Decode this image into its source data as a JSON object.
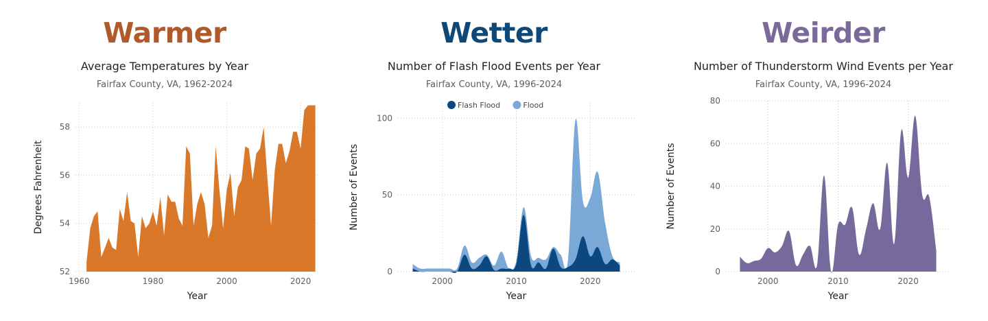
{
  "colors": {
    "warmer": "#b05a2c",
    "wetter": "#0e4879",
    "weirder": "#7a6a9a",
    "temperature_fill": "#d97828",
    "flash_flood": "#0c4880",
    "flood": "#7aa9d8",
    "thunderstorm": "#766a9c"
  },
  "panels": [
    {
      "heading": "Warmer",
      "title": "Average Temperatures by Year",
      "subtitle": "Fairfax County, VA, 1962-2024"
    },
    {
      "heading": "Wetter",
      "title": "Number of Flash Flood Events per Year",
      "subtitle": "Fairfax County, VA, 1996-2024"
    },
    {
      "heading": "Weirder",
      "title": "Number of Thunderstorm Wind Events per Year",
      "subtitle": "Fairfax County, VA, 1996-2024"
    }
  ],
  "chart_data": [
    {
      "type": "area",
      "title": "Average Temperatures by Year",
      "subtitle": "Fairfax County, VA, 1962-2024",
      "xlabel": "Year",
      "ylabel": "Degrees Fahrenheit",
      "xlim": [
        1959,
        2025
      ],
      "ylim": [
        52,
        59
      ],
      "xticks": [
        1960,
        1980,
        2000,
        2020
      ],
      "yticks": [
        52,
        54,
        56,
        58
      ],
      "grid": true,
      "x": [
        1962,
        1963,
        1964,
        1965,
        1966,
        1967,
        1968,
        1969,
        1970,
        1971,
        1972,
        1973,
        1974,
        1975,
        1976,
        1977,
        1978,
        1979,
        1980,
        1981,
        1982,
        1983,
        1984,
        1985,
        1986,
        1987,
        1988,
        1989,
        1990,
        1991,
        1992,
        1993,
        1994,
        1995,
        1996,
        1997,
        1998,
        1999,
        2000,
        2001,
        2002,
        2003,
        2004,
        2005,
        2006,
        2007,
        2008,
        2009,
        2010,
        2011,
        2012,
        2013,
        2014,
        2015,
        2016,
        2017,
        2018,
        2019,
        2020,
        2021,
        2022,
        2023,
        2024
      ],
      "series": [
        {
          "values": [
            52.4,
            53.8,
            54.3,
            54.5,
            52.6,
            53.0,
            53.4,
            53.0,
            52.9,
            54.6,
            54.1,
            55.3,
            54.1,
            54.0,
            52.6,
            54.3,
            53.8,
            54.0,
            54.5,
            53.9,
            55.1,
            53.5,
            55.2,
            54.9,
            54.9,
            54.2,
            53.9,
            57.2,
            56.9,
            53.9,
            54.8,
            55.3,
            54.8,
            53.4,
            53.9,
            57.2,
            55.4,
            53.8,
            55.4,
            56.1,
            54.3,
            55.5,
            55.8,
            57.2,
            57.1,
            55.8,
            56.9,
            57.1,
            58.0,
            55.9,
            53.9,
            56.2,
            57.3,
            57.3,
            56.5,
            57.0,
            57.8,
            57.8,
            57.1,
            58.7,
            58.9,
            58.9,
            58.9
          ]
        }
      ]
    },
    {
      "type": "area",
      "title": "Number of Flash Flood Events per Year",
      "subtitle": "Fairfax County, VA, 1996-2024",
      "xlabel": "Year",
      "ylabel": "Number of Events",
      "xlim": [
        1994,
        2026
      ],
      "ylim": [
        0,
        110
      ],
      "xticks": [
        2000,
        2010,
        2020
      ],
      "yticks": [
        0,
        50,
        100
      ],
      "grid": true,
      "legend": "top",
      "x": [
        1996,
        1997,
        1998,
        1999,
        2000,
        2001,
        2002,
        2003,
        2004,
        2005,
        2006,
        2007,
        2008,
        2009,
        2010,
        2011,
        2012,
        2013,
        2014,
        2015,
        2016,
        2017,
        2018,
        2019,
        2020,
        2021,
        2022,
        2023,
        2024
      ],
      "series": [
        {
          "name": "Flash Flood",
          "values": [
            2,
            0,
            0,
            0,
            0,
            0,
            0,
            11,
            2,
            4,
            10,
            1,
            2,
            2,
            5,
            37,
            4,
            6,
            2,
            15,
            3,
            3,
            8,
            23,
            10,
            16,
            5,
            8,
            4
          ]
        },
        {
          "name": "Flood",
          "values": [
            5,
            2,
            2,
            2,
            2,
            2,
            2,
            17,
            6,
            9,
            11,
            4,
            13,
            2,
            7,
            42,
            10,
            9,
            8,
            16,
            11,
            8,
            99,
            46,
            48,
            65,
            32,
            10,
            6
          ]
        }
      ]
    },
    {
      "type": "area",
      "title": "Number of Thunderstorm Wind Events per Year",
      "subtitle": "Fairfax County, VA, 1996-2024",
      "xlabel": "Year",
      "ylabel": "Number of Events",
      "xlim": [
        1994,
        2026
      ],
      "ylim": [
        0,
        80
      ],
      "xticks": [
        2000,
        2010,
        2020
      ],
      "yticks": [
        0,
        20,
        40,
        60,
        80
      ],
      "grid": true,
      "x": [
        1996,
        1997,
        1998,
        1999,
        2000,
        2001,
        2002,
        2003,
        2004,
        2005,
        2006,
        2007,
        2008,
        2009,
        2010,
        2011,
        2012,
        2013,
        2014,
        2015,
        2016,
        2017,
        2018,
        2019,
        2020,
        2021,
        2022,
        2023,
        2024
      ],
      "series": [
        {
          "values": [
            7,
            4,
            5,
            6,
            11,
            9,
            12,
            19,
            3,
            8,
            12,
            3,
            45,
            0,
            22,
            22,
            30,
            8,
            20,
            32,
            20,
            51,
            13,
            66,
            44,
            73,
            36,
            35,
            10
          ]
        }
      ]
    }
  ]
}
